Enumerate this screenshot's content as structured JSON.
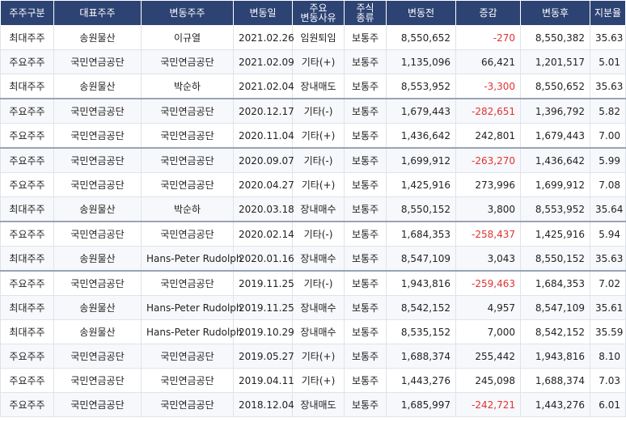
{
  "headers": [
    {
      "key": "holder_type",
      "label": "주주구분"
    },
    {
      "key": "rep_holder",
      "label": "대표주주"
    },
    {
      "key": "changed_holder",
      "label": "변동주주"
    },
    {
      "key": "date",
      "label": "변동일"
    },
    {
      "key": "reason",
      "label": "주요 변동사유"
    },
    {
      "key": "stock_type",
      "label": "주식 종류"
    },
    {
      "key": "before",
      "label": "변동전"
    },
    {
      "key": "change",
      "label": "증감"
    },
    {
      "key": "after",
      "label": "변동후"
    },
    {
      "key": "ratio",
      "label": "지분율"
    }
  ],
  "colors": {
    "header_bg": "#2d4373",
    "negative": "#e03333",
    "row_alt": "#f7f8fb"
  },
  "rows": [
    {
      "holder_type": "최대주주",
      "rep_holder": "송원물산",
      "changed_holder": "이규열",
      "date": "2021.02.26",
      "reason": "임원퇴임",
      "stock_type": "보통주",
      "before": "8,550,652",
      "change": "-270",
      "after": "8,550,382",
      "ratio": "35.63",
      "negative": true
    },
    {
      "holder_type": "주요주주",
      "rep_holder": "국민연금공단",
      "changed_holder": "국민연금공단",
      "date": "2021.02.09",
      "reason": "기타(+)",
      "stock_type": "보통주",
      "before": "1,135,096",
      "change": "66,421",
      "after": "1,201,517",
      "ratio": "5.01",
      "negative": false
    },
    {
      "holder_type": "최대주주",
      "rep_holder": "송원물산",
      "changed_holder": "박순하",
      "date": "2021.02.04",
      "reason": "장내매도",
      "stock_type": "보통주",
      "before": "8,553,952",
      "change": "-3,300",
      "after": "8,550,652",
      "ratio": "35.63",
      "negative": true
    },
    {
      "holder_type": "주요주주",
      "rep_holder": "국민연금공단",
      "changed_holder": "국민연금공단",
      "date": "2020.12.17",
      "reason": "기타(-)",
      "stock_type": "보통주",
      "before": "1,679,443",
      "change": "-282,651",
      "after": "1,396,792",
      "ratio": "5.82",
      "negative": true
    },
    {
      "holder_type": "주요주주",
      "rep_holder": "국민연금공단",
      "changed_holder": "국민연금공단",
      "date": "2020.11.04",
      "reason": "기타(+)",
      "stock_type": "보통주",
      "before": "1,436,642",
      "change": "242,801",
      "after": "1,679,443",
      "ratio": "7.00",
      "negative": false
    },
    {
      "holder_type": "주요주주",
      "rep_holder": "국민연금공단",
      "changed_holder": "국민연금공단",
      "date": "2020.09.07",
      "reason": "기타(-)",
      "stock_type": "보통주",
      "before": "1,699,912",
      "change": "-263,270",
      "after": "1,436,642",
      "ratio": "5.99",
      "negative": true
    },
    {
      "holder_type": "주요주주",
      "rep_holder": "국민연금공단",
      "changed_holder": "국민연금공단",
      "date": "2020.04.27",
      "reason": "기타(+)",
      "stock_type": "보통주",
      "before": "1,425,916",
      "change": "273,996",
      "after": "1,699,912",
      "ratio": "7.08",
      "negative": false
    },
    {
      "holder_type": "최대주주",
      "rep_holder": "송원물산",
      "changed_holder": "박순하",
      "date": "2020.03.18",
      "reason": "장내매수",
      "stock_type": "보통주",
      "before": "8,550,152",
      "change": "3,800",
      "after": "8,553,952",
      "ratio": "35.64",
      "negative": false
    },
    {
      "holder_type": "주요주주",
      "rep_holder": "국민연금공단",
      "changed_holder": "국민연금공단",
      "date": "2020.02.14",
      "reason": "기타(-)",
      "stock_type": "보통주",
      "before": "1,684,353",
      "change": "-258,437",
      "after": "1,425,916",
      "ratio": "5.94",
      "negative": true
    },
    {
      "holder_type": "최대주주",
      "rep_holder": "송원물산",
      "changed_holder": "Hans-Peter Rudolph",
      "date": "2020.01.16",
      "reason": "장내매수",
      "stock_type": "보통주",
      "before": "8,547,109",
      "change": "3,043",
      "after": "8,550,152",
      "ratio": "35.63",
      "negative": false
    },
    {
      "holder_type": "주요주주",
      "rep_holder": "국민연금공단",
      "changed_holder": "국민연금공단",
      "date": "2019.11.25",
      "reason": "기타(-)",
      "stock_type": "보통주",
      "before": "1,943,816",
      "change": "-259,463",
      "after": "1,684,353",
      "ratio": "7.02",
      "negative": true
    },
    {
      "holder_type": "최대주주",
      "rep_holder": "송원물산",
      "changed_holder": "Hans-Peter Rudolph",
      "date": "2019.11.25",
      "reason": "장내매수",
      "stock_type": "보통주",
      "before": "8,542,152",
      "change": "4,957",
      "after": "8,547,109",
      "ratio": "35.61",
      "negative": false
    },
    {
      "holder_type": "최대주주",
      "rep_holder": "송원물산",
      "changed_holder": "Hans-Peter Rudolph",
      "date": "2019.10.29",
      "reason": "장내매수",
      "stock_type": "보통주",
      "before": "8,535,152",
      "change": "7,000",
      "after": "8,542,152",
      "ratio": "35.59",
      "negative": false
    },
    {
      "holder_type": "주요주주",
      "rep_holder": "국민연금공단",
      "changed_holder": "국민연금공단",
      "date": "2019.05.27",
      "reason": "기타(+)",
      "stock_type": "보통주",
      "before": "1,688,374",
      "change": "255,442",
      "after": "1,943,816",
      "ratio": "8.10",
      "negative": false
    },
    {
      "holder_type": "주요주주",
      "rep_holder": "국민연금공단",
      "changed_holder": "국민연금공단",
      "date": "2019.04.11",
      "reason": "기타(+)",
      "stock_type": "보통주",
      "before": "1,443,276",
      "change": "245,098",
      "after": "1,688,374",
      "ratio": "7.03",
      "negative": false
    },
    {
      "holder_type": "주요주주",
      "rep_holder": "국민연금공단",
      "changed_holder": "국민연금공단",
      "date": "2018.12.04",
      "reason": "장내매도",
      "stock_type": "보통주",
      "before": "1,685,997",
      "change": "-242,721",
      "after": "1,443,276",
      "ratio": "6.01",
      "negative": true
    }
  ]
}
